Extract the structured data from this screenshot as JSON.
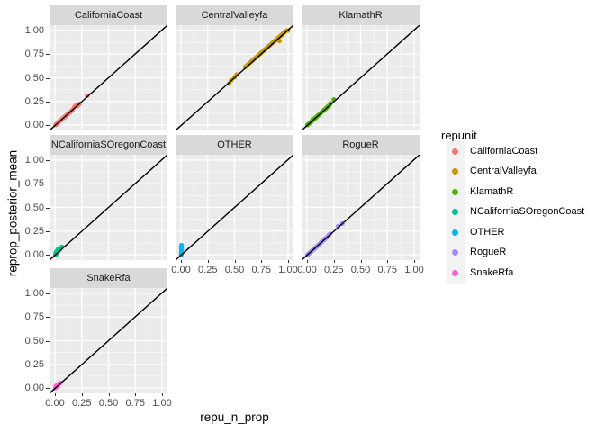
{
  "axes": {
    "x_title": "repu_n_prop",
    "y_title": "reprop_posterior_mean",
    "tick_labels": [
      "0.00",
      "0.25",
      "0.50",
      "0.75",
      "1.00"
    ],
    "tick_values": [
      0,
      0.25,
      0.5,
      0.75,
      1
    ]
  },
  "legend": {
    "title": "repunit",
    "entries": [
      {
        "label": "CaliforniaCoast",
        "color": "#F8766D"
      },
      {
        "label": "CentralValleyfa",
        "color": "#C49A00"
      },
      {
        "label": "KlamathR",
        "color": "#53B400"
      },
      {
        "label": "NCaliforniaSOregonCoast",
        "color": "#00C094"
      },
      {
        "label": "OTHER",
        "color": "#00B6EB"
      },
      {
        "label": "RogueR",
        "color": "#A58AFF"
      },
      {
        "label": "SnakeRfa",
        "color": "#FB61D7"
      }
    ]
  },
  "style": {
    "panel_bg": "#EBEBEB",
    "strip_bg": "#D9D9D9",
    "grid_color": "#FFFFFF",
    "tick_text_color": "#4D4D4D",
    "key_bg": "#F2F2F2",
    "line_color": "#000000"
  },
  "chart_data": {
    "type": "scatter",
    "title": "",
    "xlabel": "repu_n_prop",
    "ylabel": "reprop_posterior_mean",
    "facet_variable": "repunit",
    "xlim": [
      0,
      1
    ],
    "ylim": [
      0,
      1
    ],
    "x_ticks": [
      0,
      0.25,
      0.5,
      0.75,
      1
    ],
    "y_ticks": [
      0,
      0.25,
      0.5,
      0.75,
      1
    ],
    "grid": true,
    "legend_position": "right",
    "abline": {
      "slope": 1,
      "intercept": 0
    },
    "facet_layout": [
      [
        "CaliforniaCoast",
        "CentralValleyfa",
        "KlamathR"
      ],
      [
        "NCaliforniaSOregonCoast",
        "OTHER",
        "RogueR"
      ],
      [
        "SnakeRfa"
      ]
    ],
    "series": [
      {
        "name": "CaliforniaCoast",
        "color": "#F8766D",
        "points": [
          [
            0.005,
            0.002
          ],
          [
            0.01,
            0.006
          ],
          [
            0.014,
            0.01
          ],
          [
            0.018,
            0.014
          ],
          [
            0.022,
            0.02
          ],
          [
            0.028,
            0.024
          ],
          [
            0.032,
            0.03
          ],
          [
            0.04,
            0.036
          ],
          [
            0.046,
            0.042
          ],
          [
            0.052,
            0.05
          ],
          [
            0.06,
            0.055
          ],
          [
            0.066,
            0.062
          ],
          [
            0.072,
            0.07
          ],
          [
            0.08,
            0.076
          ],
          [
            0.088,
            0.084
          ],
          [
            0.096,
            0.09
          ],
          [
            0.104,
            0.1
          ],
          [
            0.112,
            0.108
          ],
          [
            0.12,
            0.118
          ],
          [
            0.13,
            0.126
          ],
          [
            0.14,
            0.134
          ],
          [
            0.148,
            0.142
          ],
          [
            0.156,
            0.152
          ],
          [
            0.164,
            0.16
          ],
          [
            0.18,
            0.19
          ],
          [
            0.19,
            0.2
          ],
          [
            0.2,
            0.21
          ],
          [
            0.21,
            0.205
          ],
          [
            0.22,
            0.215
          ],
          [
            0.23,
            0.225
          ],
          [
            0.3,
            0.31
          ]
        ]
      },
      {
        "name": "CentralValleyfa",
        "color": "#C49A00",
        "points": [
          [
            0.45,
            0.44
          ],
          [
            0.47,
            0.475
          ],
          [
            0.5,
            0.505
          ],
          [
            0.52,
            0.535
          ],
          [
            0.6,
            0.615
          ],
          [
            0.62,
            0.635
          ],
          [
            0.635,
            0.65
          ],
          [
            0.65,
            0.665
          ],
          [
            0.665,
            0.68
          ],
          [
            0.68,
            0.695
          ],
          [
            0.695,
            0.71
          ],
          [
            0.71,
            0.725
          ],
          [
            0.725,
            0.74
          ],
          [
            0.74,
            0.755
          ],
          [
            0.755,
            0.77
          ],
          [
            0.77,
            0.785
          ],
          [
            0.785,
            0.8
          ],
          [
            0.8,
            0.815
          ],
          [
            0.815,
            0.83
          ],
          [
            0.83,
            0.845
          ],
          [
            0.845,
            0.86
          ],
          [
            0.86,
            0.875
          ],
          [
            0.875,
            0.89
          ],
          [
            0.89,
            0.9
          ],
          [
            0.9,
            0.915
          ],
          [
            0.91,
            0.925
          ],
          [
            0.92,
            0.89
          ],
          [
            0.93,
            0.945
          ],
          [
            0.94,
            0.955
          ],
          [
            0.95,
            0.965
          ],
          [
            0.96,
            0.975
          ],
          [
            0.97,
            0.985
          ],
          [
            0.98,
            0.995
          ],
          [
            0.99,
            1.0
          ],
          [
            1.0,
            1.0
          ]
        ]
      },
      {
        "name": "KlamathR",
        "color": "#53B400",
        "points": [
          [
            0.004,
            0.0
          ],
          [
            0.01,
            0.008
          ],
          [
            0.018,
            0.014
          ],
          [
            0.026,
            0.022
          ],
          [
            0.034,
            0.03
          ],
          [
            0.042,
            0.038
          ],
          [
            0.05,
            0.046
          ],
          [
            0.055,
            0.065
          ],
          [
            0.06,
            0.056
          ],
          [
            0.07,
            0.066
          ],
          [
            0.08,
            0.076
          ],
          [
            0.09,
            0.088
          ],
          [
            0.1,
            0.098
          ],
          [
            0.11,
            0.108
          ],
          [
            0.12,
            0.12
          ],
          [
            0.13,
            0.128
          ],
          [
            0.14,
            0.14
          ],
          [
            0.15,
            0.148
          ],
          [
            0.16,
            0.16
          ],
          [
            0.17,
            0.168
          ],
          [
            0.18,
            0.18
          ],
          [
            0.19,
            0.192
          ],
          [
            0.2,
            0.2
          ],
          [
            0.21,
            0.212
          ],
          [
            0.22,
            0.23
          ],
          [
            0.25,
            0.27
          ]
        ]
      },
      {
        "name": "NCaliforniaSOregonCoast",
        "color": "#00C094",
        "points": [
          [
            0.004,
            0.004
          ],
          [
            0.008,
            0.016
          ],
          [
            0.012,
            0.028
          ],
          [
            0.016,
            0.02
          ],
          [
            0.02,
            0.04
          ],
          [
            0.024,
            0.048
          ],
          [
            0.028,
            0.036
          ],
          [
            0.032,
            0.052
          ],
          [
            0.036,
            0.044
          ],
          [
            0.04,
            0.06
          ],
          [
            0.044,
            0.052
          ],
          [
            0.05,
            0.066
          ],
          [
            0.055,
            0.072
          ],
          [
            0.01,
            0.0
          ],
          [
            0.03,
            0.058
          ],
          [
            0.06,
            0.076
          ],
          [
            0.065,
            0.082
          ]
        ]
      },
      {
        "name": "OTHER",
        "color": "#00B6EB",
        "points": [
          [
            0.002,
            0.002
          ],
          [
            0.003,
            0.012
          ],
          [
            0.004,
            0.022
          ],
          [
            0.005,
            0.032
          ],
          [
            0.004,
            0.042
          ],
          [
            0.006,
            0.052
          ],
          [
            0.005,
            0.062
          ],
          [
            0.006,
            0.072
          ],
          [
            0.005,
            0.082
          ],
          [
            0.004,
            0.092
          ],
          [
            0.005,
            0.1
          ],
          [
            0.008,
            0.016
          ],
          [
            0.003,
            0.0
          ]
        ]
      },
      {
        "name": "RogueR",
        "color": "#A58AFF",
        "points": [
          [
            0.004,
            0.0
          ],
          [
            0.01,
            0.004
          ],
          [
            0.018,
            0.012
          ],
          [
            0.026,
            0.02
          ],
          [
            0.034,
            0.028
          ],
          [
            0.042,
            0.036
          ],
          [
            0.05,
            0.044
          ],
          [
            0.058,
            0.052
          ],
          [
            0.066,
            0.06
          ],
          [
            0.074,
            0.068
          ],
          [
            0.082,
            0.078
          ],
          [
            0.09,
            0.086
          ],
          [
            0.098,
            0.094
          ],
          [
            0.106,
            0.102
          ],
          [
            0.114,
            0.11
          ],
          [
            0.122,
            0.12
          ],
          [
            0.13,
            0.128
          ],
          [
            0.14,
            0.138
          ],
          [
            0.15,
            0.148
          ],
          [
            0.16,
            0.158
          ],
          [
            0.17,
            0.17
          ],
          [
            0.18,
            0.178
          ],
          [
            0.2,
            0.205
          ],
          [
            0.215,
            0.22
          ],
          [
            0.29,
            0.3
          ],
          [
            0.33,
            0.33
          ]
        ]
      },
      {
        "name": "SnakeRfa",
        "color": "#FB61D7",
        "points": [
          [
            0.004,
            0.0
          ],
          [
            0.008,
            0.008
          ],
          [
            0.012,
            0.018
          ],
          [
            0.016,
            0.012
          ],
          [
            0.02,
            0.026
          ],
          [
            0.026,
            0.022
          ],
          [
            0.03,
            0.034
          ],
          [
            0.036,
            0.04
          ],
          [
            0.042,
            0.046
          ],
          [
            0.01,
            0.022
          ],
          [
            0.05,
            0.052
          ]
        ]
      }
    ]
  }
}
